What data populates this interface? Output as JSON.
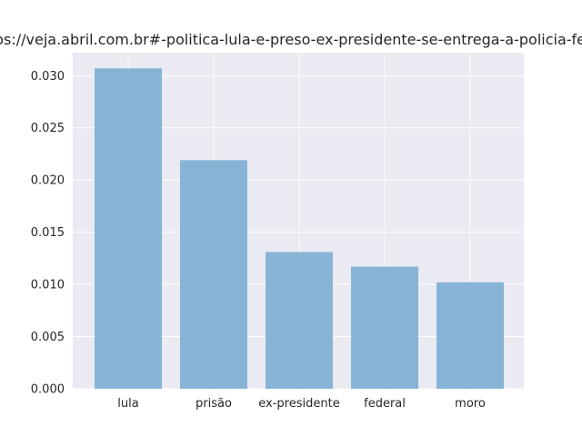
{
  "chart_data": {
    "type": "bar",
    "title": "https://veja.abril.com.br#-politica-lula-e-preso-ex-presidente-se-entrega-a-policia-federal",
    "xlabel": "",
    "ylabel": "",
    "categories": [
      "lula",
      "prisão",
      "ex-presidente",
      "federal",
      "moro"
    ],
    "values": [
      0.0307,
      0.0219,
      0.0131,
      0.0117,
      0.0102
    ],
    "ylim": [
      0,
      0.0322
    ],
    "yticks": [
      "0.000",
      "0.005",
      "0.010",
      "0.015",
      "0.020",
      "0.025",
      "0.030"
    ],
    "grid": true,
    "bar_color": "#7eafd4",
    "axes_background": "#eaeaf2",
    "grid_color": "#ffffff"
  }
}
